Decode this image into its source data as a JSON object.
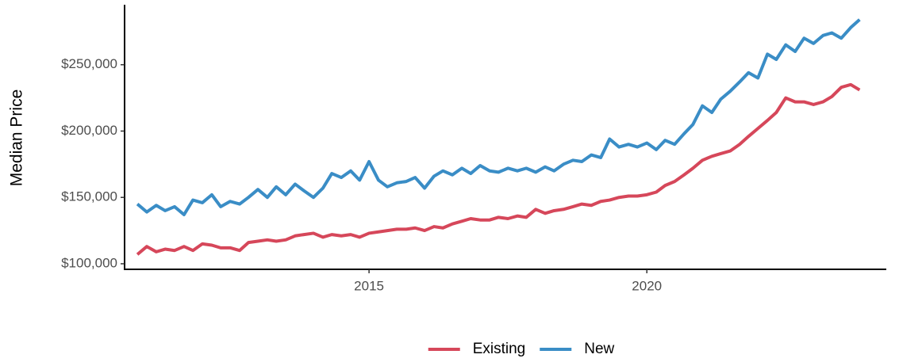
{
  "chart_data": {
    "type": "line",
    "y_label": "Median Price",
    "x": [
      2010.83,
      2011.0,
      2011.17,
      2011.33,
      2011.5,
      2011.67,
      2011.83,
      2012.0,
      2012.17,
      2012.33,
      2012.5,
      2012.67,
      2012.83,
      2013.0,
      2013.17,
      2013.33,
      2013.5,
      2013.67,
      2013.83,
      2014.0,
      2014.17,
      2014.33,
      2014.5,
      2014.67,
      2014.83,
      2015.0,
      2015.17,
      2015.33,
      2015.5,
      2015.67,
      2015.83,
      2016.0,
      2016.17,
      2016.33,
      2016.5,
      2016.67,
      2016.83,
      2017.0,
      2017.17,
      2017.33,
      2017.5,
      2017.67,
      2017.83,
      2018.0,
      2018.17,
      2018.33,
      2018.5,
      2018.67,
      2018.83,
      2019.0,
      2019.17,
      2019.33,
      2019.5,
      2019.67,
      2019.83,
      2020.0,
      2020.17,
      2020.33,
      2020.5,
      2020.67,
      2020.83,
      2021.0,
      2021.17,
      2021.33,
      2021.5,
      2021.67,
      2021.83,
      2022.0,
      2022.17,
      2022.33,
      2022.5,
      2022.67,
      2022.83,
      2023.0,
      2023.17,
      2023.33,
      2023.5,
      2023.67,
      2023.83
    ],
    "series": [
      {
        "name": "Existing",
        "color": "#d6475a",
        "values": [
          107000,
          113000,
          109000,
          111000,
          110000,
          113000,
          110000,
          115000,
          114000,
          112000,
          112000,
          110000,
          116000,
          117000,
          118000,
          117000,
          118000,
          121000,
          122000,
          123000,
          120000,
          122000,
          121000,
          122000,
          120000,
          123000,
          124000,
          125000,
          126000,
          126000,
          127000,
          125000,
          128000,
          127000,
          130000,
          132000,
          134000,
          133000,
          133000,
          135000,
          134000,
          136000,
          135000,
          141000,
          138000,
          140000,
          141000,
          143000,
          145000,
          144000,
          147000,
          148000,
          150000,
          151000,
          151000,
          152000,
          154000,
          159000,
          162000,
          167000,
          172000,
          178000,
          181000,
          183000,
          185000,
          190000,
          196000,
          202000,
          208000,
          214000,
          225000,
          222000,
          222000,
          220000,
          222000,
          226000,
          233000,
          235000,
          231000
        ]
      },
      {
        "name": "New",
        "color": "#3a8dc6",
        "values": [
          145000,
          139000,
          144000,
          140000,
          143000,
          137000,
          148000,
          146000,
          152000,
          143000,
          147000,
          145000,
          150000,
          156000,
          150000,
          158000,
          152000,
          160000,
          155000,
          150000,
          157000,
          168000,
          165000,
          170000,
          163000,
          177000,
          163000,
          158000,
          161000,
          162000,
          165000,
          157000,
          166000,
          170000,
          167000,
          172000,
          168000,
          174000,
          170000,
          169000,
          172000,
          170000,
          172000,
          169000,
          173000,
          170000,
          175000,
          178000,
          177000,
          182000,
          180000,
          194000,
          188000,
          190000,
          188000,
          191000,
          186000,
          193000,
          190000,
          198000,
          205000,
          219000,
          214000,
          224000,
          230000,
          237000,
          244000,
          240000,
          258000,
          254000,
          265000,
          260000,
          270000,
          266000,
          272000,
          274000,
          270000,
          278000,
          284000
        ]
      }
    ],
    "xlim": [
      2010.6,
      2024.31
    ],
    "xticks": [
      2015,
      2020
    ],
    "ylim": [
      95800,
      294000
    ],
    "yticks": [
      {
        "value": 100000,
        "label": "$100,000"
      },
      {
        "value": 150000,
        "label": "$150,000"
      },
      {
        "value": 200000,
        "label": "$200,000"
      },
      {
        "value": 250000,
        "label": "$250,000"
      }
    ],
    "grid": false,
    "legend_position": "bottom"
  }
}
